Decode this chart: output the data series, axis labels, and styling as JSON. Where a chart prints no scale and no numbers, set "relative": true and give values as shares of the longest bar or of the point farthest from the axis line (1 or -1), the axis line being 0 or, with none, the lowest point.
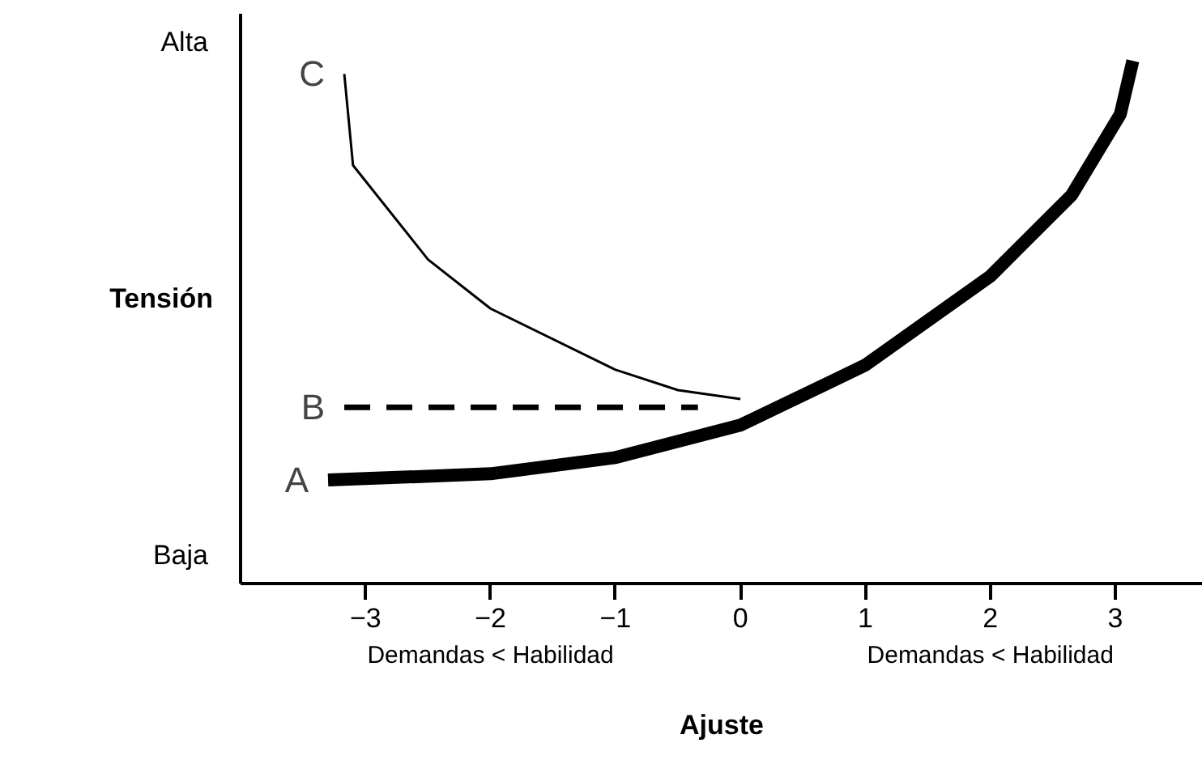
{
  "chart_data": {
    "type": "line",
    "relative": true,
    "xlabel": "Ajuste",
    "ylabel": "Tensión",
    "xlim": [
      -4,
      3.7
    ],
    "xticks": [
      -3,
      -2,
      -1,
      0,
      1,
      2,
      3
    ],
    "grid": false,
    "marker": "none",
    "annotations": [
      "Alta",
      "Baja",
      "Demandas < Habilidad",
      "Demandas < Habilidad"
    ],
    "series": [
      {
        "name": "A",
        "color": "#000000",
        "line_style": "solid",
        "x": [
          -3.3,
          -2,
          -1,
          0,
          1,
          2,
          2.65,
          3.04,
          3.14
        ],
        "values": [
          0.198,
          0.21,
          0.241,
          0.303,
          0.418,
          0.588,
          0.743,
          0.898,
          1
        ]
      },
      {
        "name": "B",
        "color": "#000000",
        "line_style": "dashed",
        "x": [
          -3.17,
          -0.34
        ],
        "values": [
          0.337,
          0.337
        ]
      },
      {
        "name": "C",
        "color": "#000000",
        "line_style": "solid",
        "x": [
          -3.17,
          -3.1,
          -2.5,
          -2,
          -1,
          -0.5,
          0
        ],
        "values": [
          0.975,
          0.8,
          0.62,
          0.526,
          0.409,
          0.37,
          0.353
        ]
      }
    ]
  }
}
